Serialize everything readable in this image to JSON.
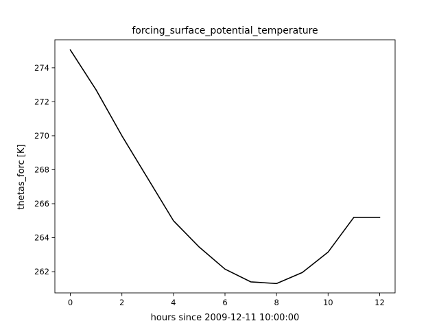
{
  "chart_data": {
    "type": "line",
    "title": "forcing_surface_potential_temperature",
    "xlabel": "hours since 2009-12-11 10:00:00",
    "ylabel": "thetas_forc [K]",
    "xlim": [
      -0.6,
      12.6
    ],
    "ylim": [
      260.75,
      275.65
    ],
    "xticks": [
      0,
      2,
      4,
      6,
      8,
      10,
      12
    ],
    "yticks": [
      262,
      264,
      266,
      268,
      270,
      272,
      274
    ],
    "grid": false,
    "series": [
      {
        "color": "#000000",
        "x": [
          0,
          1,
          2,
          3,
          4,
          5,
          6,
          7,
          8,
          9,
          10,
          11,
          12
        ],
        "y": [
          275.05,
          272.7,
          270.0,
          267.5,
          265.0,
          263.45,
          262.15,
          261.4,
          261.3,
          261.95,
          263.15,
          265.2,
          265.2
        ]
      }
    ]
  }
}
